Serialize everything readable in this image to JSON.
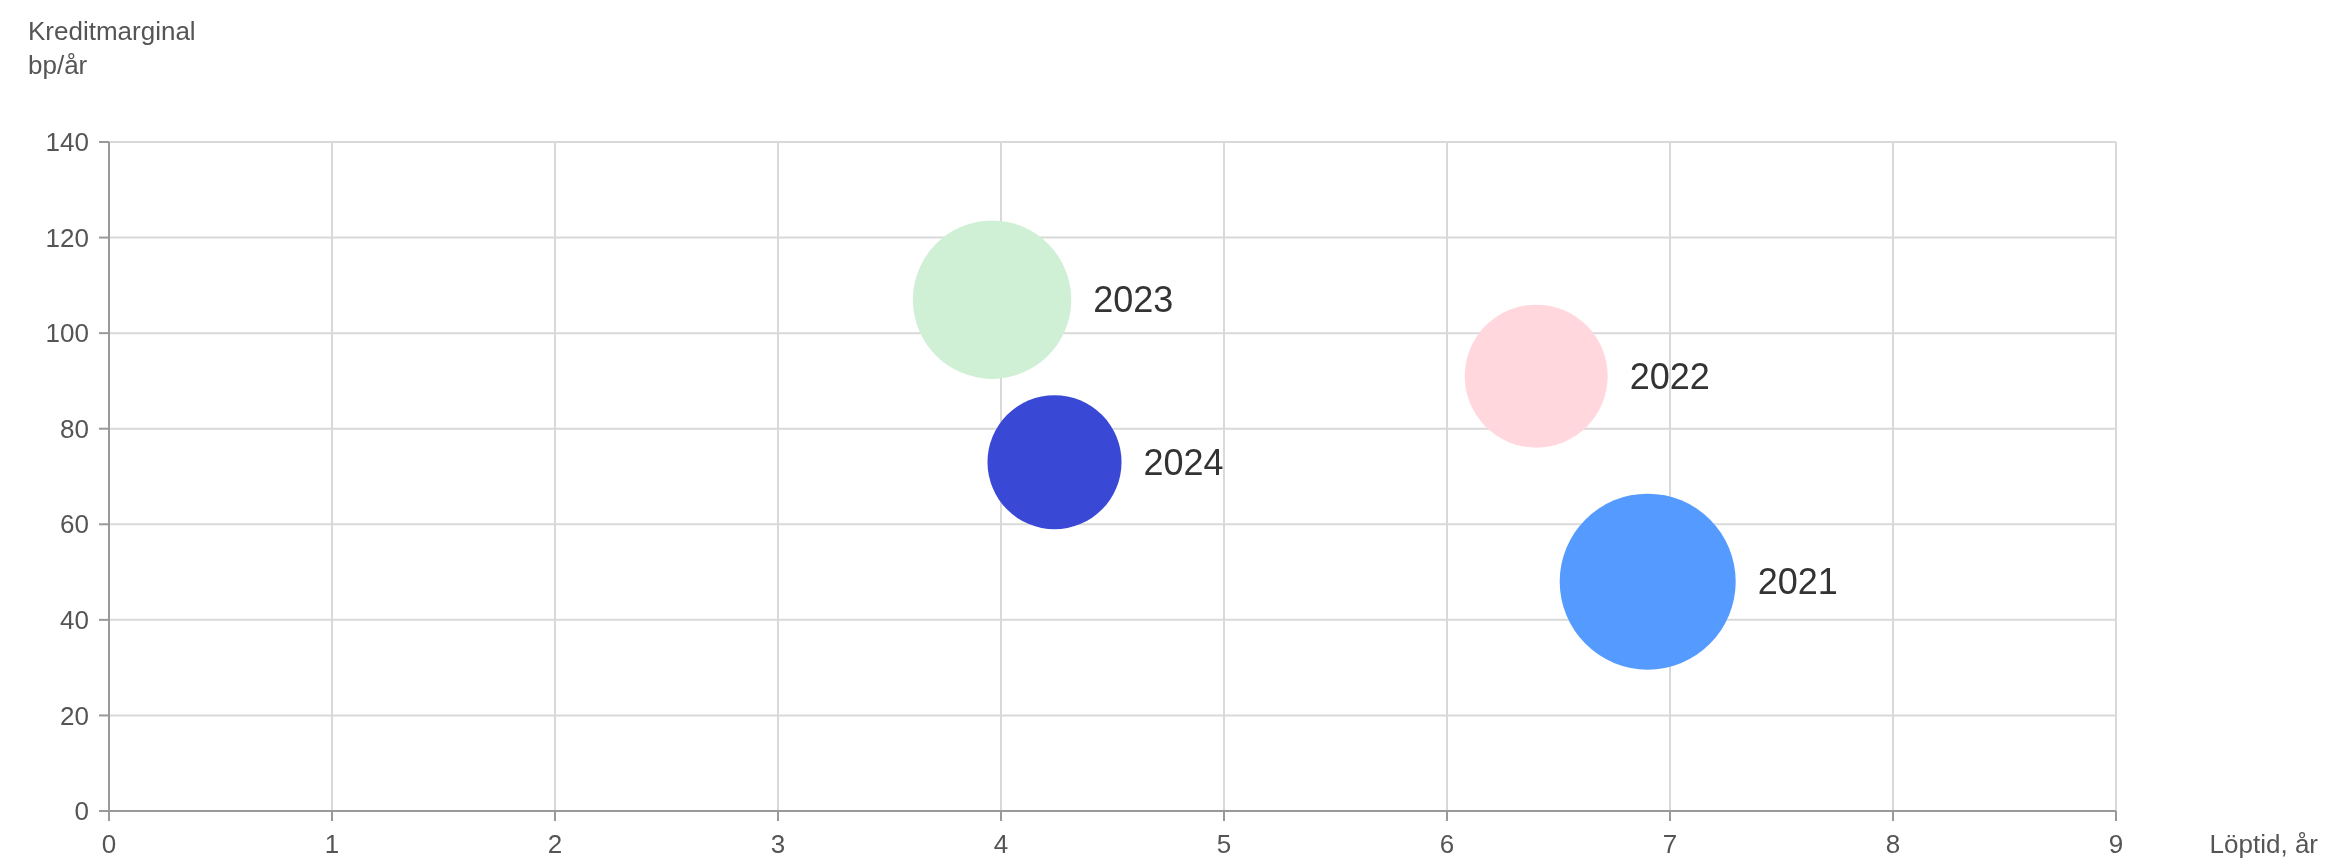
{
  "chart_data": {
    "type": "bubble",
    "xlabel": "Löptid, år",
    "ylabel": "Kreditmarginal\nbp/år",
    "xlim": [
      0,
      9
    ],
    "xticks": [
      0,
      1,
      2,
      3,
      4,
      5,
      6,
      7,
      8,
      9
    ],
    "ylim": [
      0,
      140
    ],
    "yticks": [
      0,
      20,
      40,
      60,
      80,
      100,
      120,
      140
    ],
    "grid": true,
    "series": [
      {
        "name": "2023",
        "color": "#d0f0d6",
        "x": [
          3.96
        ],
        "values": [
          107
        ],
        "sizes": [
          0.81
        ]
      },
      {
        "name": "2024",
        "color": "#3a48d6",
        "x": [
          4.24
        ],
        "values": [
          73
        ],
        "sizes": [
          0.58
        ]
      },
      {
        "name": "2022",
        "color": "#ffd7dd",
        "x": [
          6.4
        ],
        "values": [
          91
        ],
        "sizes": [
          0.66
        ]
      },
      {
        "name": "2021",
        "color": "#559bff",
        "x": [
          6.9
        ],
        "values": [
          48
        ],
        "sizes": [
          1
        ]
      }
    ]
  }
}
